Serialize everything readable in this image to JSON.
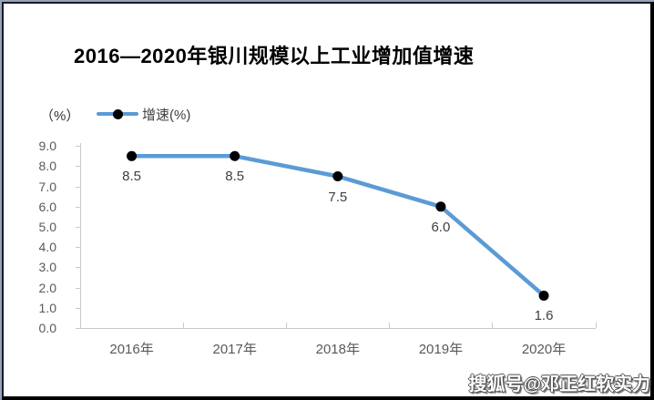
{
  "chart_data": {
    "type": "line",
    "title": "2016—2020年银川规模以上工业增加值增速",
    "unit_label": "（%）",
    "legend_label": "增速(%)",
    "legend_position": "top-left",
    "categories": [
      "2016年",
      "2017年",
      "2018年",
      "2019年",
      "2020年"
    ],
    "series": [
      {
        "name": "增速(%)",
        "values": [
          8.5,
          8.5,
          7.5,
          6.0,
          1.6
        ]
      }
    ],
    "data_labels": [
      "8.5",
      "8.5",
      "7.5",
      "6.0",
      "1.6"
    ],
    "yticks": [
      "0.0",
      "1.0",
      "2.0",
      "3.0",
      "4.0",
      "5.0",
      "6.0",
      "7.0",
      "8.0",
      "9.0"
    ],
    "ylim": [
      0,
      9
    ],
    "grid": false
  },
  "colors": {
    "line": "#5B9BD5",
    "marker": "#000000",
    "axis_line": "#c9c9c9",
    "tick_label_text": "#595959",
    "data_label_text": "#404040",
    "frame_outer": "#9aa2b8",
    "frame_inner": "#141a26"
  },
  "watermark": {
    "text": "搜狐号@邓正红软实力"
  }
}
